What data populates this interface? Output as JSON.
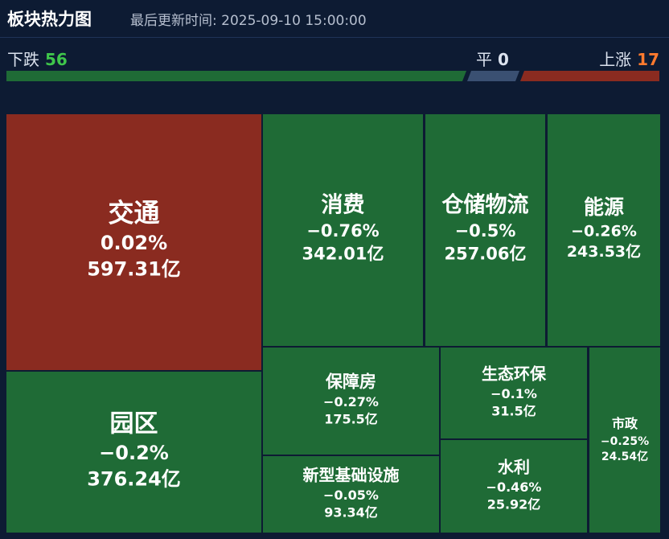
{
  "header": {
    "title": "板块热力图",
    "updated": "最后更新时间: 2025-09-10 15:00:00"
  },
  "counts": {
    "down_label": "下跌",
    "down": "56",
    "flat_label": "平",
    "flat": "0",
    "up_label": "上涨",
    "up": "17"
  },
  "colors": {
    "up": "#8a2b20",
    "down": "#1f6b36",
    "flat": "#3a5072",
    "down_text": "#3fc64b",
    "up_text": "#ff7a2e",
    "background": "#0d1b33"
  },
  "chart_data": {
    "type": "treemap",
    "unit": "亿",
    "sectors": [
      {
        "name": "交通",
        "change": "0.02%",
        "value": "597.31亿"
      },
      {
        "name": "园区",
        "change": "−0.2%",
        "value": "376.24亿"
      },
      {
        "name": "消费",
        "change": "−0.76%",
        "value": "342.01亿"
      },
      {
        "name": "仓储物流",
        "change": "−0.5%",
        "value": "257.06亿"
      },
      {
        "name": "能源",
        "change": "−0.26%",
        "value": "243.53亿"
      },
      {
        "name": "保障房",
        "change": "−0.27%",
        "value": "175.5亿"
      },
      {
        "name": "生态环保",
        "change": "−0.1%",
        "value": "31.5亿"
      },
      {
        "name": "市政",
        "change": "−0.25%",
        "value": "24.54亿"
      },
      {
        "name": "新型基础设施",
        "change": "−0.05%",
        "value": "93.34亿"
      },
      {
        "name": "水利",
        "change": "−0.46%",
        "value": "25.92亿"
      }
    ]
  }
}
